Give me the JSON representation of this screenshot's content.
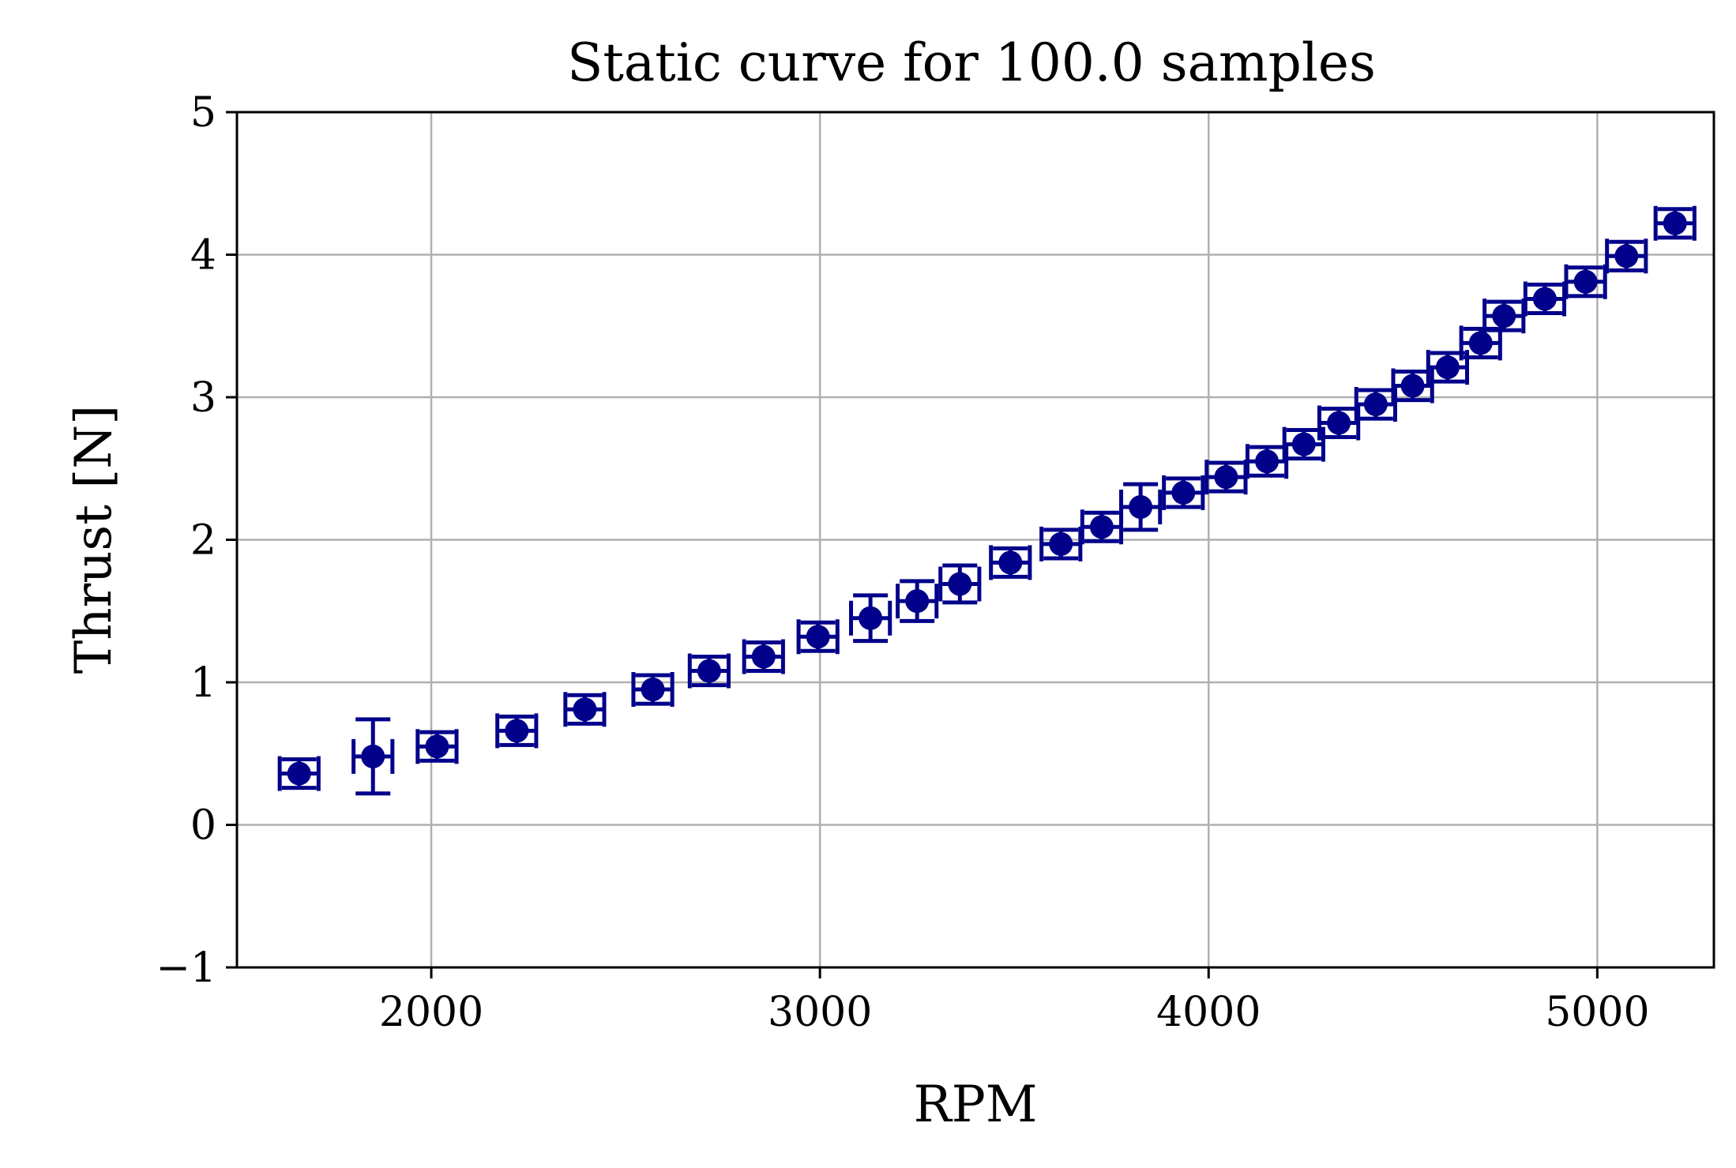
{
  "chart_data": {
    "type": "scatter",
    "title": "Static curve for 100.0 samples",
    "xlabel": "RPM",
    "ylabel": "Thrust [N]",
    "xlim": [
      1500,
      5300
    ],
    "ylim": [
      -1,
      5
    ],
    "xticks": [
      2000,
      3000,
      4000,
      5000
    ],
    "yticks": [
      -1,
      0,
      1,
      2,
      3,
      4,
      5
    ],
    "xtick_labels": [
      "2000",
      "3000",
      "4000",
      "5000"
    ],
    "ytick_labels": [
      "−1",
      "0",
      "1",
      "2",
      "3",
      "4",
      "5"
    ],
    "grid": true,
    "marker_color": "#00008b",
    "series": [
      {
        "points": [
          {
            "x": 1660,
            "y": 0.36,
            "xerr": 50,
            "yerr": 0.1
          },
          {
            "x": 1850,
            "y": 0.48,
            "xerr": 50,
            "yerr": 0.26
          },
          {
            "x": 2015,
            "y": 0.55,
            "xerr": 50,
            "yerr": 0.1
          },
          {
            "x": 2220,
            "y": 0.66,
            "xerr": 50,
            "yerr": 0.1
          },
          {
            "x": 2395,
            "y": 0.81,
            "xerr": 50,
            "yerr": 0.1
          },
          {
            "x": 2570,
            "y": 0.95,
            "xerr": 50,
            "yerr": 0.1
          },
          {
            "x": 2715,
            "y": 1.08,
            "xerr": 50,
            "yerr": 0.1
          },
          {
            "x": 2855,
            "y": 1.18,
            "xerr": 50,
            "yerr": 0.1
          },
          {
            "x": 2995,
            "y": 1.32,
            "xerr": 50,
            "yerr": 0.1
          },
          {
            "x": 3130,
            "y": 1.45,
            "xerr": 50,
            "yerr": 0.16
          },
          {
            "x": 3250,
            "y": 1.57,
            "xerr": 50,
            "yerr": 0.14
          },
          {
            "x": 3360,
            "y": 1.69,
            "xerr": 50,
            "yerr": 0.13
          },
          {
            "x": 3490,
            "y": 1.84,
            "xerr": 50,
            "yerr": 0.1
          },
          {
            "x": 3620,
            "y": 1.97,
            "xerr": 50,
            "yerr": 0.1
          },
          {
            "x": 3725,
            "y": 2.09,
            "xerr": 50,
            "yerr": 0.1
          },
          {
            "x": 3825,
            "y": 2.23,
            "xerr": 50,
            "yerr": 0.16
          },
          {
            "x": 3935,
            "y": 2.33,
            "xerr": 50,
            "yerr": 0.1
          },
          {
            "x": 4045,
            "y": 2.44,
            "xerr": 50,
            "yerr": 0.1
          },
          {
            "x": 4150,
            "y": 2.55,
            "xerr": 50,
            "yerr": 0.1
          },
          {
            "x": 4245,
            "y": 2.67,
            "xerr": 50,
            "yerr": 0.1
          },
          {
            "x": 4335,
            "y": 2.82,
            "xerr": 50,
            "yerr": 0.1
          },
          {
            "x": 4430,
            "y": 2.95,
            "xerr": 50,
            "yerr": 0.1
          },
          {
            "x": 4525,
            "y": 3.08,
            "xerr": 50,
            "yerr": 0.1
          },
          {
            "x": 4615,
            "y": 3.21,
            "xerr": 50,
            "yerr": 0.1
          },
          {
            "x": 4700,
            "y": 3.38,
            "xerr": 50,
            "yerr": 0.1
          },
          {
            "x": 4760,
            "y": 3.57,
            "xerr": 50,
            "yerr": 0.1
          },
          {
            "x": 4865,
            "y": 3.69,
            "xerr": 50,
            "yerr": 0.1
          },
          {
            "x": 4970,
            "y": 3.81,
            "xerr": 50,
            "yerr": 0.1
          },
          {
            "x": 5075,
            "y": 3.99,
            "xerr": 50,
            "yerr": 0.1
          },
          {
            "x": 5200,
            "y": 4.22,
            "xerr": 50,
            "yerr": 0.1
          }
        ]
      }
    ]
  }
}
